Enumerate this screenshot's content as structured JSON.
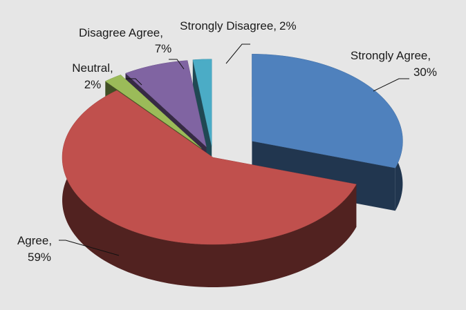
{
  "chart_data": {
    "type": "pie3d",
    "categories": [
      "Strongly Agree,",
      "Agree,",
      "Neutral,",
      "Disagree Agree,",
      "Strongly Disagree,"
    ],
    "values": [
      30,
      59,
      2,
      7,
      2
    ],
    "value_labels": [
      "30%",
      "59%",
      "2%",
      "7%",
      "2%"
    ],
    "colors": [
      "#4f81bd",
      "#c0504d",
      "#9bbb59",
      "#8064a2",
      "#4bacc6"
    ]
  }
}
